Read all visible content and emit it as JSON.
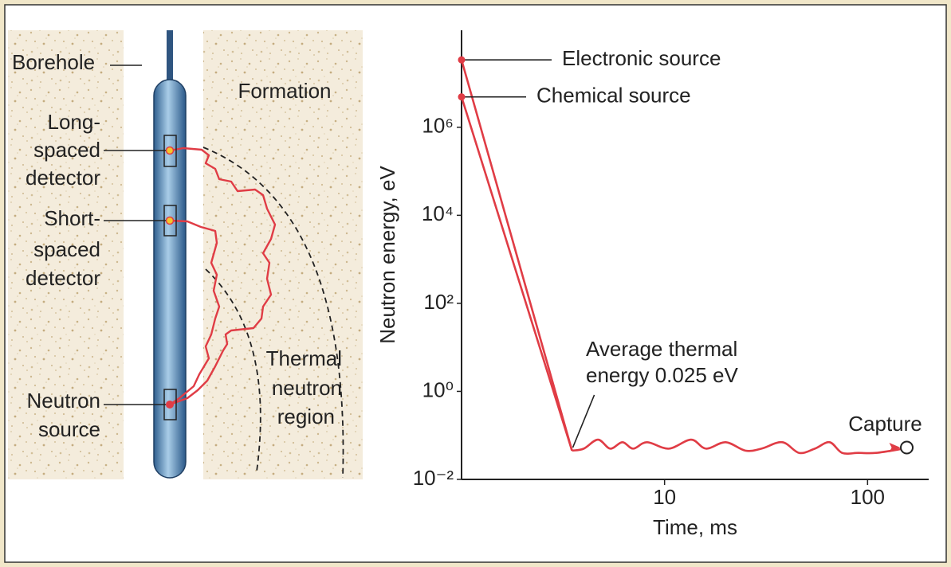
{
  "diagram": {
    "borehole": "Borehole",
    "formation": "Formation",
    "long_spaced_detector": [
      "Long-",
      "spaced",
      "detector"
    ],
    "short_spaced_detector": [
      "Short-",
      "spaced",
      "detector"
    ],
    "neutron_source": [
      "Neutron",
      "source"
    ],
    "thermal_region": [
      "Thermal",
      "neutron",
      "region"
    ]
  },
  "chart_data": {
    "type": "line",
    "x_label": "Time, ms",
    "y_label": "Neutron energy, eV",
    "log_x": true,
    "log_y": true,
    "xlim": [
      1,
      200
    ],
    "ylim": [
      0.01,
      160000000
    ],
    "xticks": [
      10,
      100
    ],
    "yticks": [
      {
        "value": 1000000,
        "label": "10⁶"
      },
      {
        "value": 10000,
        "label": "10⁴"
      },
      {
        "value": 100,
        "label": "10²"
      },
      {
        "value": 1,
        "label": "10⁰"
      },
      {
        "value": 0.01,
        "label": "10⁻²"
      }
    ],
    "color": "#e03c45",
    "series": [
      {
        "name": "Electronic source",
        "x": [
          1,
          3.5
        ],
        "values": [
          34000000,
          0.045
        ]
      },
      {
        "name": "Chemical source",
        "x": [
          1,
          3.5
        ],
        "values": [
          4900000,
          0.045
        ]
      },
      {
        "name": "Average thermal energy 0.025 eV",
        "x": [
          3.5,
          4.0,
          4.7,
          5.4,
          6.2,
          7.0,
          8.2,
          10.5,
          13.5,
          16,
          20,
          25,
          30,
          38,
          46,
          55,
          65,
          75,
          90,
          110,
          150
        ],
        "values": [
          0.045,
          0.05,
          0.08,
          0.05,
          0.07,
          0.05,
          0.07,
          0.05,
          0.08,
          0.05,
          0.07,
          0.045,
          0.05,
          0.07,
          0.04,
          0.05,
          0.07,
          0.04,
          0.04,
          0.04,
          0.05
        ]
      }
    ],
    "thermal_annotation": [
      "Average thermal",
      "energy 0.025 eV"
    ],
    "capture": {
      "text": "Capture",
      "x": 156,
      "value": 0.053
    }
  }
}
